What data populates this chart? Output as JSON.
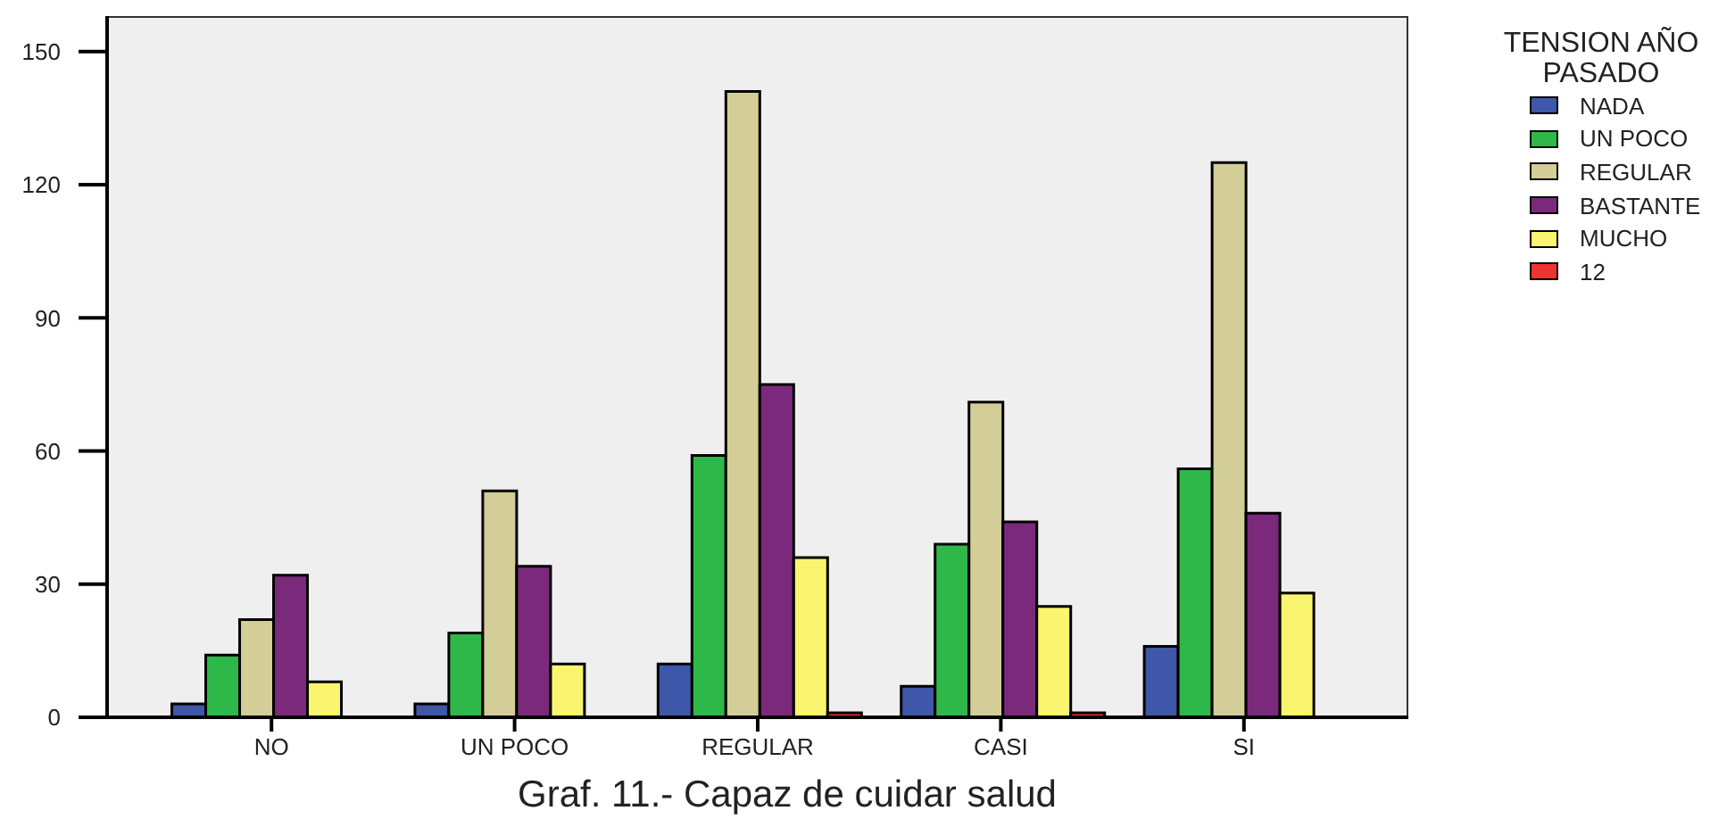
{
  "chart_data": {
    "type": "bar",
    "title": "Graf. 11.- Capaz de cuidar salud",
    "legend_title": "TENSION AÑO PASADO",
    "categories": [
      "NO",
      "UN POCO",
      "REGULAR",
      "CASI",
      "SI"
    ],
    "series": [
      {
        "name": "NADA",
        "color": "#3f57a8",
        "values": [
          3,
          3,
          12,
          7,
          16
        ]
      },
      {
        "name": "UN POCO",
        "color": "#2fb84a",
        "values": [
          14,
          19,
          59,
          39,
          56
        ]
      },
      {
        "name": "REGULAR",
        "color": "#d3cd97",
        "values": [
          22,
          51,
          141,
          71,
          125
        ]
      },
      {
        "name": "BASTANTE",
        "color": "#7b2a7b",
        "values": [
          32,
          34,
          75,
          44,
          46
        ]
      },
      {
        "name": "MUCHO",
        "color": "#f9f56f",
        "values": [
          8,
          12,
          36,
          25,
          28
        ]
      },
      {
        "name": "12",
        "color": "#ee3333",
        "values": [
          0,
          0,
          1,
          1,
          0
        ]
      }
    ],
    "ylim": [
      0,
      158
    ],
    "yticks": [
      0,
      30,
      60,
      90,
      120,
      150
    ],
    "legend": "top right"
  }
}
